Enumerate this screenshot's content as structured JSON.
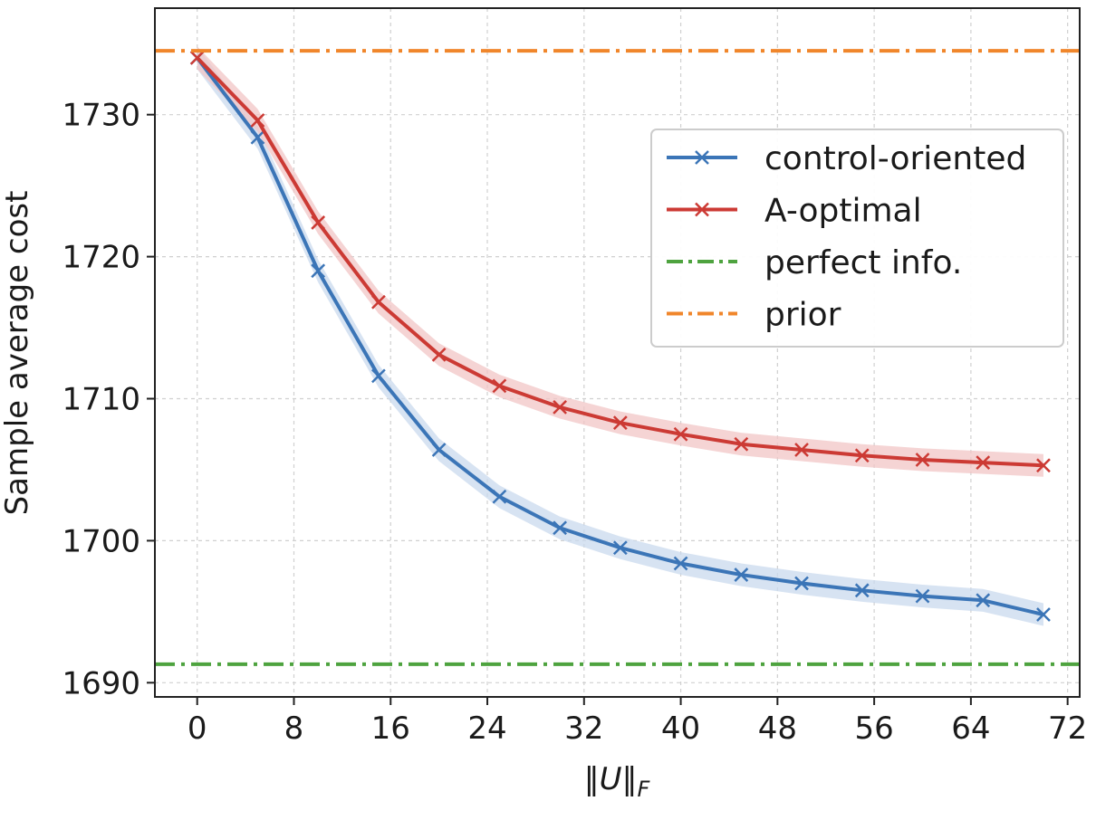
{
  "chart_data": {
    "type": "line",
    "title": "",
    "xlabel": "‖U‖",
    "xlabel_sub": "F",
    "ylabel": "Sample average cost",
    "xlim": [
      -3.5,
      73
    ],
    "ylim": [
      1689,
      1737.5
    ],
    "xticks": [
      0,
      8,
      16,
      24,
      32,
      40,
      48,
      56,
      64,
      72
    ],
    "yticks": [
      1690,
      1700,
      1710,
      1720,
      1730
    ],
    "grid": true,
    "legend_position": "upper-right",
    "x": [
      0,
      5,
      10,
      15,
      20,
      25,
      30,
      35,
      40,
      45,
      50,
      55,
      60,
      65,
      70
    ],
    "series": [
      {
        "name": "control-oriented",
        "kind": "line-marker",
        "color": "#3b75b7",
        "band_color": "#c9d9ee",
        "values": [
          1734.0,
          1728.4,
          1719.0,
          1711.6,
          1706.4,
          1703.1,
          1700.9,
          1699.5,
          1698.4,
          1697.6,
          1697.0,
          1696.5,
          1696.1,
          1695.8,
          1694.8
        ],
        "band": 0.8
      },
      {
        "name": "A-optimal",
        "kind": "line-marker",
        "color": "#cc3a34",
        "band_color": "#f2c6c6",
        "values": [
          1734.0,
          1729.6,
          1722.4,
          1716.8,
          1713.1,
          1710.9,
          1709.4,
          1708.3,
          1707.5,
          1706.8,
          1706.4,
          1706.0,
          1705.7,
          1705.5,
          1705.3
        ],
        "band": 0.8
      },
      {
        "name": "perfect info.",
        "kind": "hline",
        "color": "#4ea33f",
        "value": 1691.3
      },
      {
        "name": "prior",
        "kind": "hline",
        "color": "#f0862b",
        "value": 1734.5
      }
    ]
  }
}
